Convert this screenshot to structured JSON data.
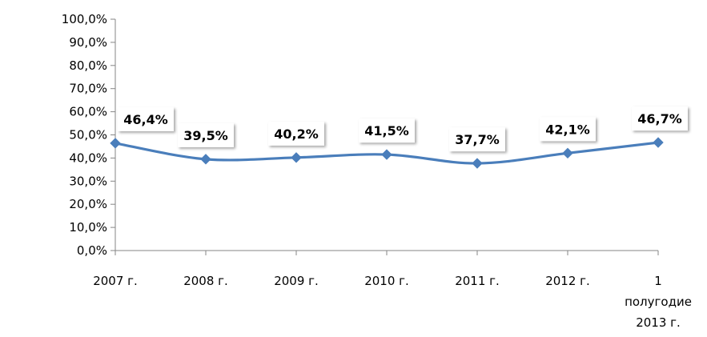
{
  "chart_data": {
    "type": "line",
    "categories": [
      "2007 г.",
      "2008 г.",
      "2009 г.",
      "2010 г.",
      "2011 г.",
      "2012 г.",
      "1 полугодие 2013 г."
    ],
    "category_lines": [
      [
        "2007 г."
      ],
      [
        "2008 г."
      ],
      [
        "2009 г."
      ],
      [
        "2010 г."
      ],
      [
        "2011 г."
      ],
      [
        "2012 г."
      ],
      [
        "1",
        "полугодие",
        "2013 г."
      ]
    ],
    "series": [
      {
        "values": [
          46.4,
          39.5,
          40.2,
          41.5,
          37.7,
          42.1,
          46.7
        ],
        "color": "#4a7ebb"
      }
    ],
    "data_labels": [
      "46,4%",
      "39,5%",
      "40,2%",
      "41,5%",
      "37,7%",
      "42,1%",
      "46,7%"
    ],
    "y_ticks": [
      "0,0%",
      "10,0%",
      "20,0%",
      "30,0%",
      "40,0%",
      "50,0%",
      "60,0%",
      "70,0%",
      "80,0%",
      "90,0%",
      "100,0%"
    ],
    "ylim": [
      0,
      100
    ],
    "grid": false,
    "marker": "diamond",
    "smooth": true,
    "title": "",
    "xlabel": "",
    "ylabel": ""
  }
}
